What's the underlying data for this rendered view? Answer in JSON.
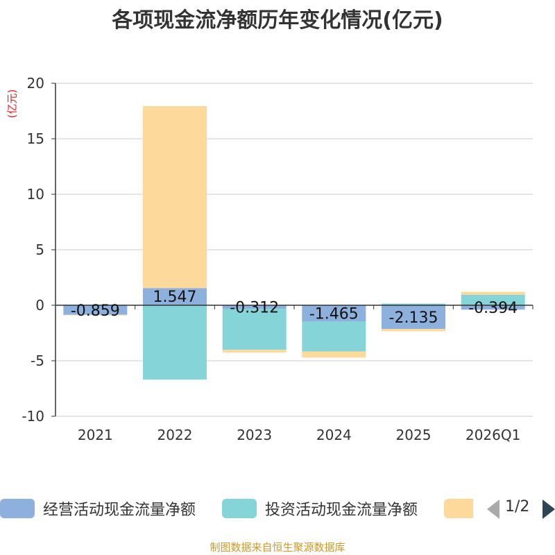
{
  "chart_data": {
    "type": "bar",
    "stacked": true,
    "title": "各项现金流净额历年变化情况(亿元)",
    "ylabel": "(亿元)",
    "xlabel": "",
    "ylim": [
      -10,
      20
    ],
    "yticks": [
      -10,
      -5,
      0,
      5,
      10,
      15,
      20
    ],
    "grid": true,
    "categories": [
      "2021",
      "2022",
      "2023",
      "2024",
      "2025",
      "2026Q1"
    ],
    "series": [
      {
        "name": "经营活动现金流量净额",
        "color": "#8eb0dc",
        "values": [
          -0.859,
          1.547,
          -0.312,
          -1.465,
          -2.135,
          -0.394
        ],
        "show_labels": true
      },
      {
        "name": "投资活动现金流量净额",
        "color": "#85d5d8",
        "values": [
          0.05,
          -6.7,
          -3.7,
          -2.7,
          0.15,
          0.95
        ],
        "show_labels": false
      },
      {
        "name": "",
        "color": "#fdd99b",
        "values": [
          -0.05,
          16.4,
          -0.25,
          -0.55,
          -0.2,
          0.25
        ],
        "show_labels": false
      }
    ]
  },
  "legend": {
    "page_indicator": "1/2"
  },
  "source_note": "制图数据来自恒生聚源数据库"
}
